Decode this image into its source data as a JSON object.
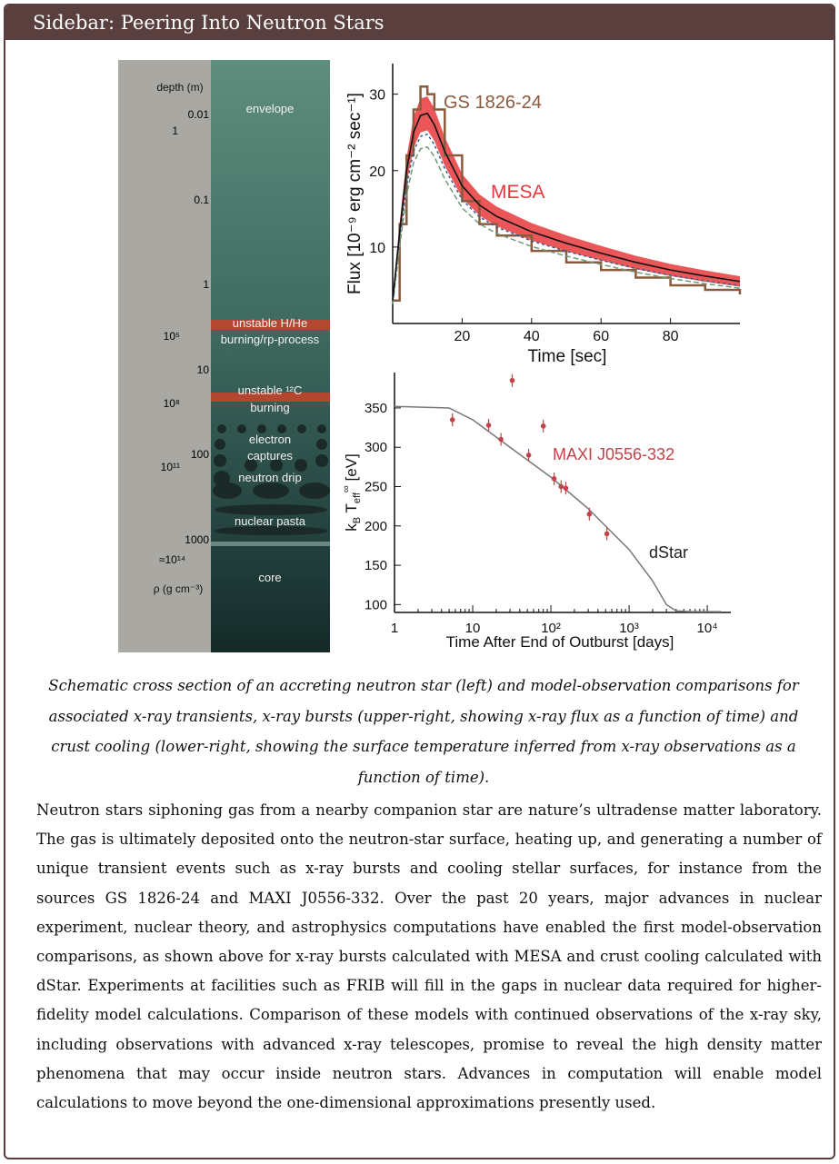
{
  "sidebar": {
    "title": "Sidebar: Peering Into Neutron Stars"
  },
  "cross_section": {
    "depth_label": "depth (m)",
    "density_label": "ρ (g cm⁻³)",
    "depth_ticks": [
      "0.01",
      "0.1",
      "1",
      "10",
      "100",
      "1000"
    ],
    "density_ticks": [
      "1",
      "10⁵",
      "10⁸",
      "10¹¹",
      "≈10¹⁴"
    ],
    "layers": {
      "envelope": "envelope",
      "hhe_1": "unstable H/He",
      "hhe_2": "burning/rp-process",
      "c12_1": "unstable ¹²C",
      "c12_2": "burning",
      "ec_1": "electron",
      "ec_2": "captures",
      "drip": "neutron drip",
      "pasta": "nuclear pasta",
      "core": "core"
    },
    "colors": {
      "outer": "#a9a8a2",
      "star_top": "#5e8e7d",
      "star_bottom": "#152a28",
      "burn": "#c0442c"
    }
  },
  "chart_data": [
    {
      "type": "line",
      "title": "",
      "xlabel": "Time [sec]",
      "ylabel": "Flux [10⁻⁹ erg cm⁻² sec⁻¹]",
      "xlim": [
        0,
        100
      ],
      "ylim": [
        0,
        34
      ],
      "x_ticks": [
        "20",
        "40",
        "60",
        "80"
      ],
      "y_ticks": [
        "10",
        "20",
        "30"
      ],
      "grid": false,
      "series": [
        {
          "name": "MESA",
          "color": "#e8383c",
          "x": [
            0,
            2,
            4,
            6,
            8,
            10,
            12,
            15,
            20,
            25,
            30,
            40,
            50,
            60,
            70,
            80,
            90,
            100
          ],
          "y": [
            3,
            12,
            20,
            25,
            27.2,
            27.5,
            26,
            22.5,
            18,
            15.5,
            14,
            12,
            10.5,
            9.2,
            8,
            7,
            6.2,
            5.5
          ]
        },
        {
          "name": "GS 1826-24",
          "color": "#8b5a3c",
          "x": [
            0,
            2,
            4,
            6,
            8,
            10,
            12,
            15,
            20,
            25,
            30,
            40,
            50,
            60,
            70,
            80,
            90,
            100
          ],
          "y": [
            3,
            13,
            22,
            28,
            31,
            30,
            28,
            22,
            16,
            13,
            11.5,
            9.5,
            8,
            7,
            6,
            5,
            4.4,
            3.8
          ]
        }
      ],
      "annotations": [
        "GS 1826-24",
        "MESA"
      ]
    },
    {
      "type": "scatter",
      "title": "",
      "xlabel": "Time After End of Outburst [days]",
      "ylabel": "k_B T_eff^∞ [eV]",
      "xscale": "log",
      "xlim": [
        1,
        20000
      ],
      "ylim": [
        90,
        395
      ],
      "x_ticks": [
        "1",
        "10",
        "10²",
        "10³",
        "10⁴"
      ],
      "y_ticks": [
        "100",
        "150",
        "200",
        "250",
        "300",
        "350"
      ],
      "grid": false,
      "series": [
        {
          "name": "MAXI J0556-332",
          "color": "#c0444a",
          "x": [
            5.5,
            16,
            23,
            32,
            52,
            80,
            110,
            135,
            155,
            310,
            520
          ],
          "y": [
            335,
            328,
            310,
            385,
            290,
            327,
            260,
            250,
            248,
            215,
            190
          ]
        },
        {
          "name": "dStar",
          "color": "#777777",
          "x": [
            1,
            5,
            10,
            30,
            100,
            300,
            1000,
            2000,
            3000,
            4000,
            6000,
            10000,
            15000
          ],
          "y": [
            352,
            350,
            335,
            300,
            262,
            222,
            170,
            130,
            100,
            92,
            91,
            91,
            91
          ]
        }
      ],
      "annotations": [
        "MAXI J0556-332",
        "dStar"
      ]
    }
  ],
  "caption": "Schematic cross section of an accreting neutron star (left) and model-observation comparisons for associated x-ray transients, x-ray bursts (upper-right, showing x-ray flux as a function of time) and crust cooling (lower-right, showing the surface temperature inferred from x-ray observations as a function of time).",
  "body": "Neutron stars siphoning gas from a nearby companion star are nature’s ultradense matter laboratory. The gas is ultimately deposited onto the neutron-star surface, heating up, and generating a number of unique transient events such as x-ray bursts and cooling stellar surfaces, for instance from the sources GS 1826-24 and MAXI J0556-332. Over the past 20 years, major advances in nuclear experiment, nuclear theory, and astrophysics computations have enabled the first model-observation comparisons, as shown above for x-ray bursts calculated with MESA and crust cooling calculated with dStar. Experiments at facilities such as FRIB will fill in the gaps in nuclear data required for higher-fidelity model calculations. Comparison of these models with continued observations of the x-ray sky, including observations with advanced x-ray telescopes, promise to reveal the high density matter phenomena that may occur inside neutron stars. Advances in computation will enable model calculations to move beyond the one-dimensional approximations presently used."
}
